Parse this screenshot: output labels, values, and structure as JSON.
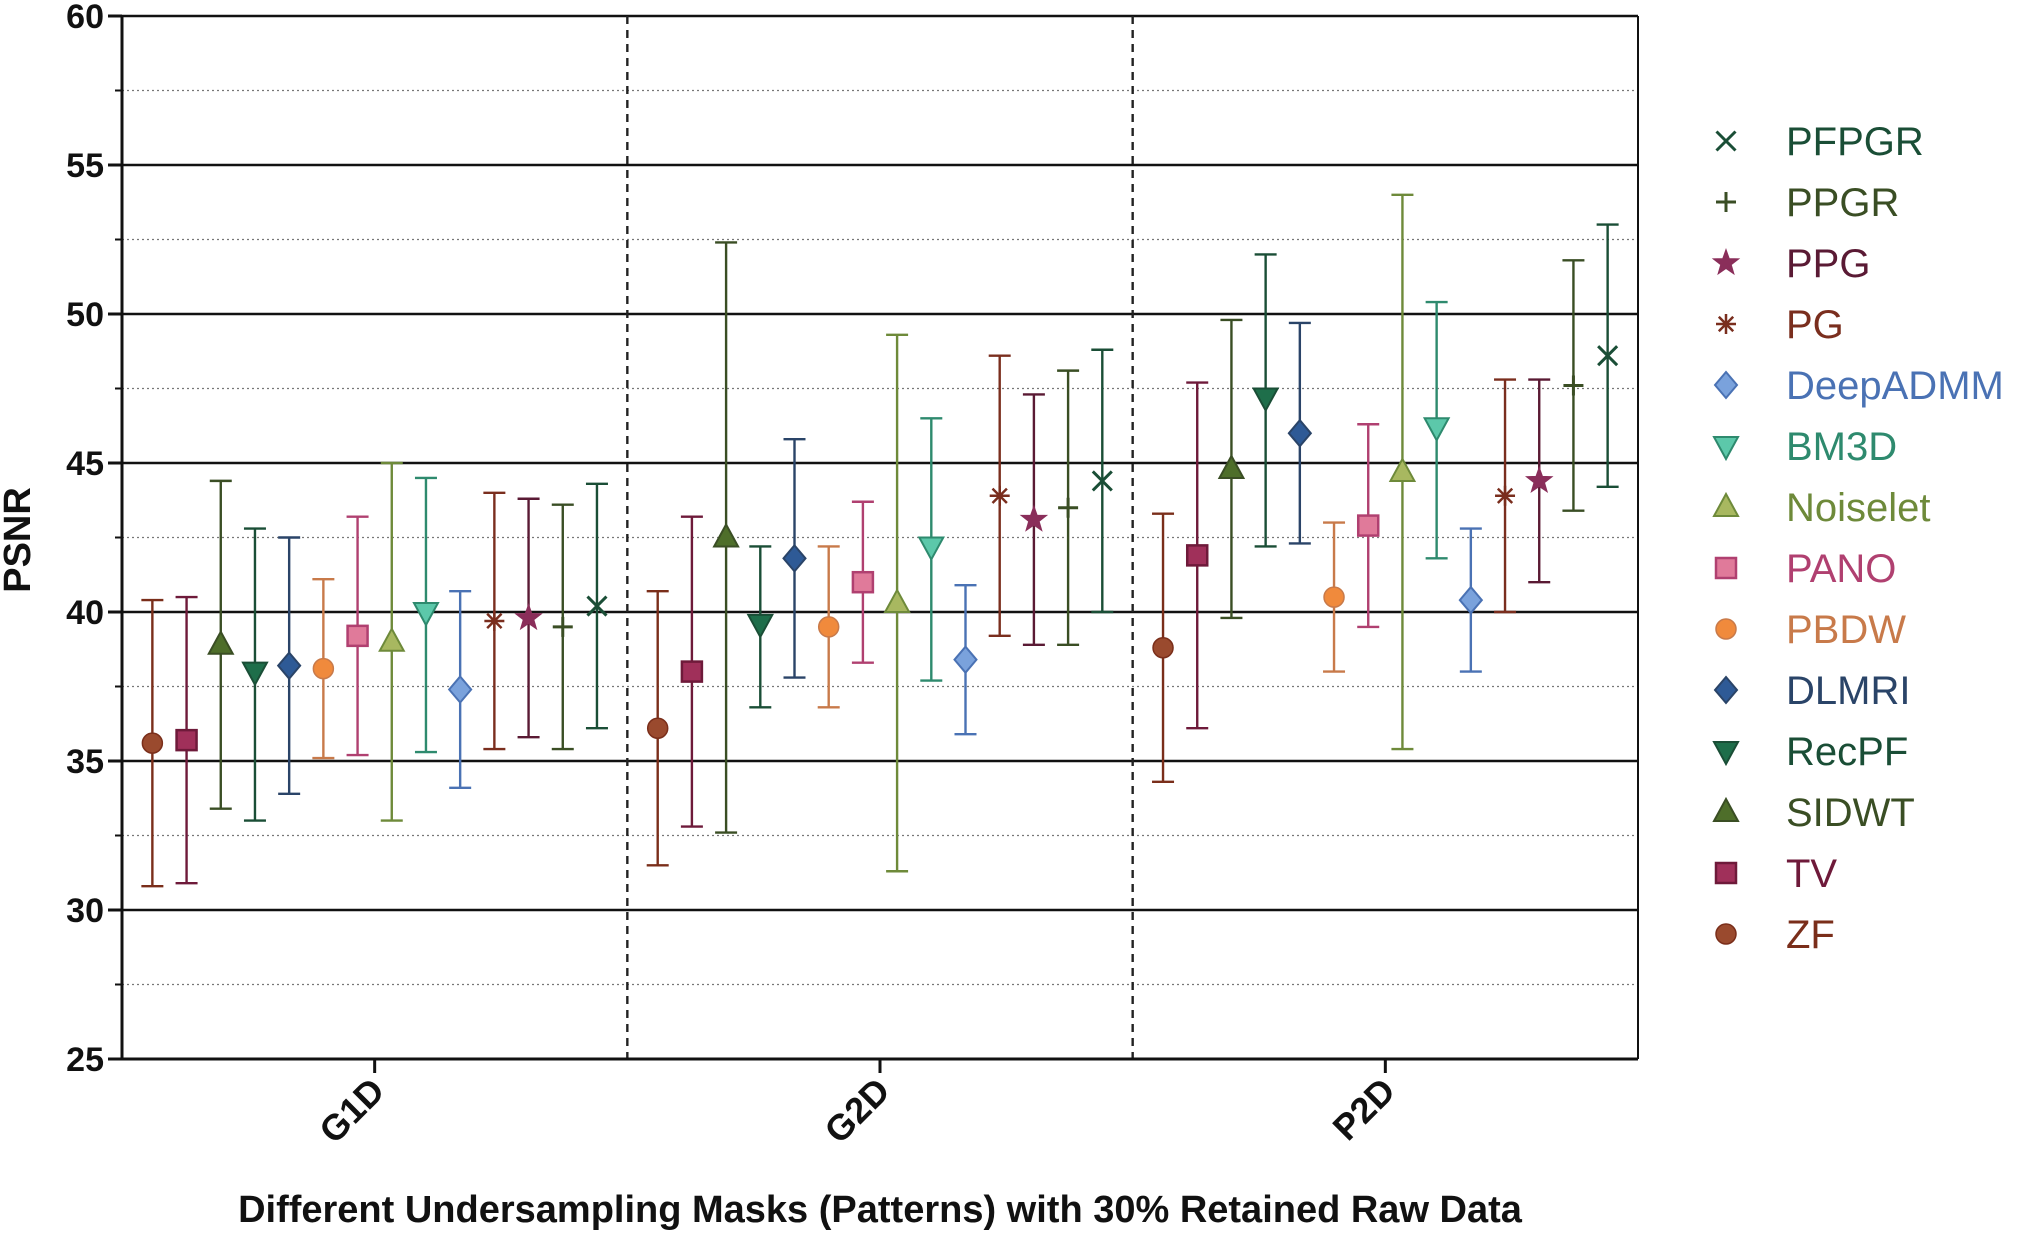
{
  "chart_data": {
    "type": "scatter",
    "variant": "error-bars",
    "title": "",
    "xlabel": "Different Undersampling Masks (Patterns) with 30% Retained Raw Data",
    "ylabel": "PSNR",
    "ylim": [
      25,
      60
    ],
    "yticks": [
      25,
      30,
      35,
      40,
      45,
      50,
      55,
      60
    ],
    "categories": [
      "G1D",
      "G2D",
      "P2D"
    ],
    "legend_position": "right",
    "series": [
      {
        "name": "ZF",
        "marker": "circle",
        "color": "#9a4a2e",
        "bar_color": "#7a2e1a",
        "values": [
          35.6,
          36.1,
          38.8
        ],
        "lower": [
          30.8,
          31.5,
          34.3
        ],
        "upper": [
          40.4,
          40.7,
          43.3
        ]
      },
      {
        "name": "TV",
        "marker": "square",
        "color": "#a0305a",
        "bar_color": "#6e1a3a",
        "values": [
          35.7,
          38.0,
          41.9
        ],
        "lower": [
          30.9,
          32.8,
          36.1
        ],
        "upper": [
          40.5,
          43.2,
          47.7
        ]
      },
      {
        "name": "SIDWT",
        "marker": "triangle-up",
        "color": "#4e6e2a",
        "bar_color": "#3a4e24",
        "values": [
          38.9,
          42.5,
          44.8
        ],
        "lower": [
          33.4,
          32.6,
          39.8
        ],
        "upper": [
          44.4,
          52.4,
          49.8
        ]
      },
      {
        "name": "RecPF",
        "marker": "triangle-down",
        "color": "#1e6e4a",
        "bar_color": "#1a4e36",
        "values": [
          38.0,
          39.6,
          47.2
        ],
        "lower": [
          33.0,
          36.8,
          42.2
        ],
        "upper": [
          42.8,
          42.2,
          52.0
        ]
      },
      {
        "name": "DLMRI",
        "marker": "diamond",
        "color": "#2e5a96",
        "bar_color": "#2a4468",
        "values": [
          38.2,
          41.8,
          46.0
        ],
        "lower": [
          33.9,
          37.8,
          42.3
        ],
        "upper": [
          42.5,
          45.8,
          49.7
        ]
      },
      {
        "name": "PBDW",
        "marker": "circle",
        "color": "#f08a3c",
        "bar_color": "#c87a4a",
        "values": [
          38.1,
          39.5,
          40.5
        ],
        "lower": [
          35.1,
          36.8,
          38.0
        ],
        "upper": [
          41.1,
          42.2,
          43.0
        ]
      },
      {
        "name": "PANO",
        "marker": "square",
        "color": "#e07a9a",
        "bar_color": "#b04070",
        "values": [
          39.2,
          41.0,
          42.9
        ],
        "lower": [
          35.2,
          38.3,
          39.5
        ],
        "upper": [
          43.2,
          43.7,
          46.3
        ]
      },
      {
        "name": "Noiselet",
        "marker": "triangle-up",
        "color": "#a8b860",
        "bar_color": "#6e8a3a",
        "values": [
          39.0,
          40.3,
          44.7
        ],
        "lower": [
          33.0,
          31.3,
          35.4
        ],
        "upper": [
          45.0,
          49.3,
          54.0
        ]
      },
      {
        "name": "BM3D",
        "marker": "triangle-down",
        "color": "#5cc8aa",
        "bar_color": "#2e8a6e",
        "values": [
          40.0,
          42.2,
          46.2
        ],
        "lower": [
          35.3,
          37.7,
          41.8
        ],
        "upper": [
          44.5,
          46.5,
          50.4
        ]
      },
      {
        "name": "DeepADMM",
        "marker": "diamond",
        "color": "#7aa2dc",
        "bar_color": "#4a72b4",
        "values": [
          37.4,
          38.4,
          40.4
        ],
        "lower": [
          34.1,
          35.9,
          38.0
        ],
        "upper": [
          40.7,
          40.9,
          42.8
        ]
      },
      {
        "name": "PG",
        "marker": "asterisk",
        "color": "#7a2e1e",
        "bar_color": "#7a2e1e",
        "values": [
          39.7,
          43.9,
          43.9
        ],
        "lower": [
          35.4,
          39.2,
          40.0
        ],
        "upper": [
          44.0,
          48.6,
          47.8
        ]
      },
      {
        "name": "PPG",
        "marker": "star",
        "color": "#8a2e5a",
        "bar_color": "#5a1a34",
        "values": [
          39.8,
          43.1,
          44.4
        ],
        "lower": [
          35.8,
          38.9,
          41.0
        ],
        "upper": [
          43.8,
          47.3,
          47.8
        ]
      },
      {
        "name": "PPGR",
        "marker": "plus",
        "color": "#3a4e24",
        "bar_color": "#3a4e24",
        "values": [
          39.5,
          43.5,
          47.6
        ],
        "lower": [
          35.4,
          38.9,
          43.4
        ],
        "upper": [
          43.6,
          48.1,
          51.8
        ]
      },
      {
        "name": "PFPGR",
        "marker": "x",
        "color": "#1a4e36",
        "bar_color": "#1a4e36",
        "values": [
          40.2,
          44.4,
          48.6
        ],
        "lower": [
          36.1,
          40.0,
          44.2
        ],
        "upper": [
          44.3,
          48.8,
          53.0
        ]
      }
    ],
    "legend_order": [
      "PFPGR",
      "PPGR",
      "PPG",
      "PG",
      "DeepADMM",
      "BM3D",
      "Noiselet",
      "PANO",
      "PBDW",
      "DLMRI",
      "RecPF",
      "SIDWT",
      "TV",
      "ZF"
    ]
  }
}
